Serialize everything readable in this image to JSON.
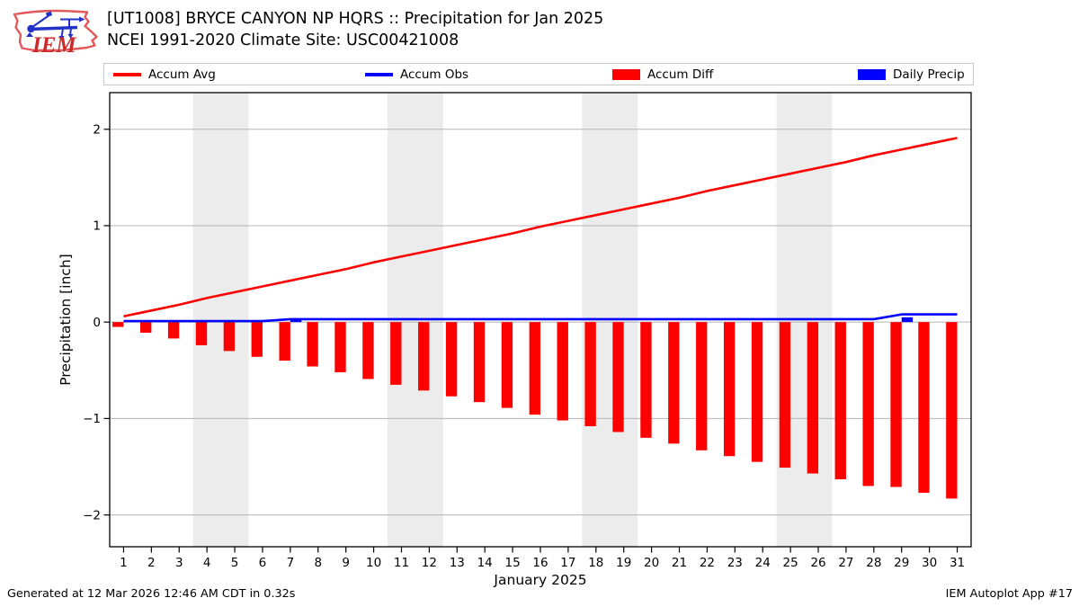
{
  "header": {
    "logo_text": "IEM",
    "title_line1": "[UT1008] BRYCE CANYON NP HQRS :: Precipitation for Jan 2025",
    "title_line2": "NCEI 1991-2020 Climate Site: USC00421008"
  },
  "legend": [
    {
      "label": "Accum Avg",
      "swatch": "line",
      "color": "#ff0000"
    },
    {
      "label": "Accum Obs",
      "swatch": "line",
      "color": "#0000ff"
    },
    {
      "label": "Accum Diff",
      "swatch": "rect",
      "color": "#ff0000"
    },
    {
      "label": "Daily Precip",
      "swatch": "rect",
      "color": "#0000ff"
    }
  ],
  "footer": {
    "left": "Generated at 12 Mar 2026 12:46 AM CDT in 0.32s",
    "right": "IEM Autoplot App #17"
  },
  "chart_data": {
    "type": "line+bar",
    "title": "[UT1008] BRYCE CANYON NP HQRS :: Precipitation for Jan 2025",
    "subtitle": "NCEI 1991-2020 Climate Site: USC00421008",
    "xlabel": "January 2025",
    "ylabel": "Precipitation [inch]",
    "xlim": [
      0.5,
      31.5
    ],
    "ylim": [
      -2.33,
      2.38
    ],
    "yticks": [
      -2,
      -1,
      0,
      1,
      2
    ],
    "ytick_labels": [
      "−2",
      "−1",
      "0",
      "1",
      "2"
    ],
    "xticks": [
      1,
      2,
      3,
      4,
      5,
      6,
      7,
      8,
      9,
      10,
      11,
      12,
      13,
      14,
      15,
      16,
      17,
      18,
      19,
      20,
      21,
      22,
      23,
      24,
      25,
      26,
      27,
      28,
      29,
      30,
      31
    ],
    "grid": "horizontal",
    "grid_color": "#b4b4b4",
    "weekend_bands": [
      [
        3.5,
        5.5
      ],
      [
        10.5,
        12.5
      ],
      [
        17.5,
        19.5
      ],
      [
        24.5,
        26.5
      ]
    ],
    "band_color": "#ececec",
    "legend_position": "top outside, 4 columns",
    "bar_width_days": 0.4,
    "x": [
      1,
      2,
      3,
      4,
      5,
      6,
      7,
      8,
      9,
      10,
      11,
      12,
      13,
      14,
      15,
      16,
      17,
      18,
      19,
      20,
      21,
      22,
      23,
      24,
      25,
      26,
      27,
      28,
      29,
      30,
      31
    ],
    "series": [
      {
        "name": "Accum Avg",
        "type": "line",
        "color": "#ff0000",
        "line_width": 2.6,
        "values": [
          0.06,
          0.12,
          0.18,
          0.25,
          0.31,
          0.37,
          0.43,
          0.49,
          0.55,
          0.62,
          0.68,
          0.74,
          0.8,
          0.86,
          0.92,
          0.99,
          1.05,
          1.11,
          1.17,
          1.23,
          1.29,
          1.36,
          1.42,
          1.48,
          1.54,
          1.6,
          1.66,
          1.73,
          1.79,
          1.85,
          1.91
        ]
      },
      {
        "name": "Accum Obs",
        "type": "line",
        "color": "#0000ff",
        "line_width": 2.6,
        "values": [
          0.01,
          0.01,
          0.01,
          0.01,
          0.01,
          0.01,
          0.03,
          0.03,
          0.03,
          0.03,
          0.03,
          0.03,
          0.03,
          0.03,
          0.03,
          0.03,
          0.03,
          0.03,
          0.03,
          0.03,
          0.03,
          0.03,
          0.03,
          0.03,
          0.03,
          0.03,
          0.03,
          0.03,
          0.08,
          0.08,
          0.08
        ]
      },
      {
        "name": "Accum Diff",
        "type": "bar",
        "color": "#ff0000",
        "bar_offset": -0.2,
        "values": [
          -0.05,
          -0.11,
          -0.17,
          -0.24,
          -0.3,
          -0.36,
          -0.4,
          -0.46,
          -0.52,
          -0.59,
          -0.65,
          -0.71,
          -0.77,
          -0.83,
          -0.89,
          -0.96,
          -1.02,
          -1.08,
          -1.14,
          -1.2,
          -1.26,
          -1.33,
          -1.39,
          -1.45,
          -1.51,
          -1.57,
          -1.63,
          -1.7,
          -1.71,
          -1.77,
          -1.83
        ]
      },
      {
        "name": "Daily Precip",
        "type": "bar",
        "color": "#0000ff",
        "bar_offset": 0.2,
        "values": [
          0,
          0,
          0,
          0,
          0,
          0,
          0.02,
          0,
          0,
          0,
          0,
          0,
          0,
          0,
          0,
          0,
          0,
          0,
          0,
          0,
          0,
          0,
          0,
          0,
          0,
          0,
          0,
          0,
          0.05,
          0,
          0
        ]
      }
    ]
  }
}
